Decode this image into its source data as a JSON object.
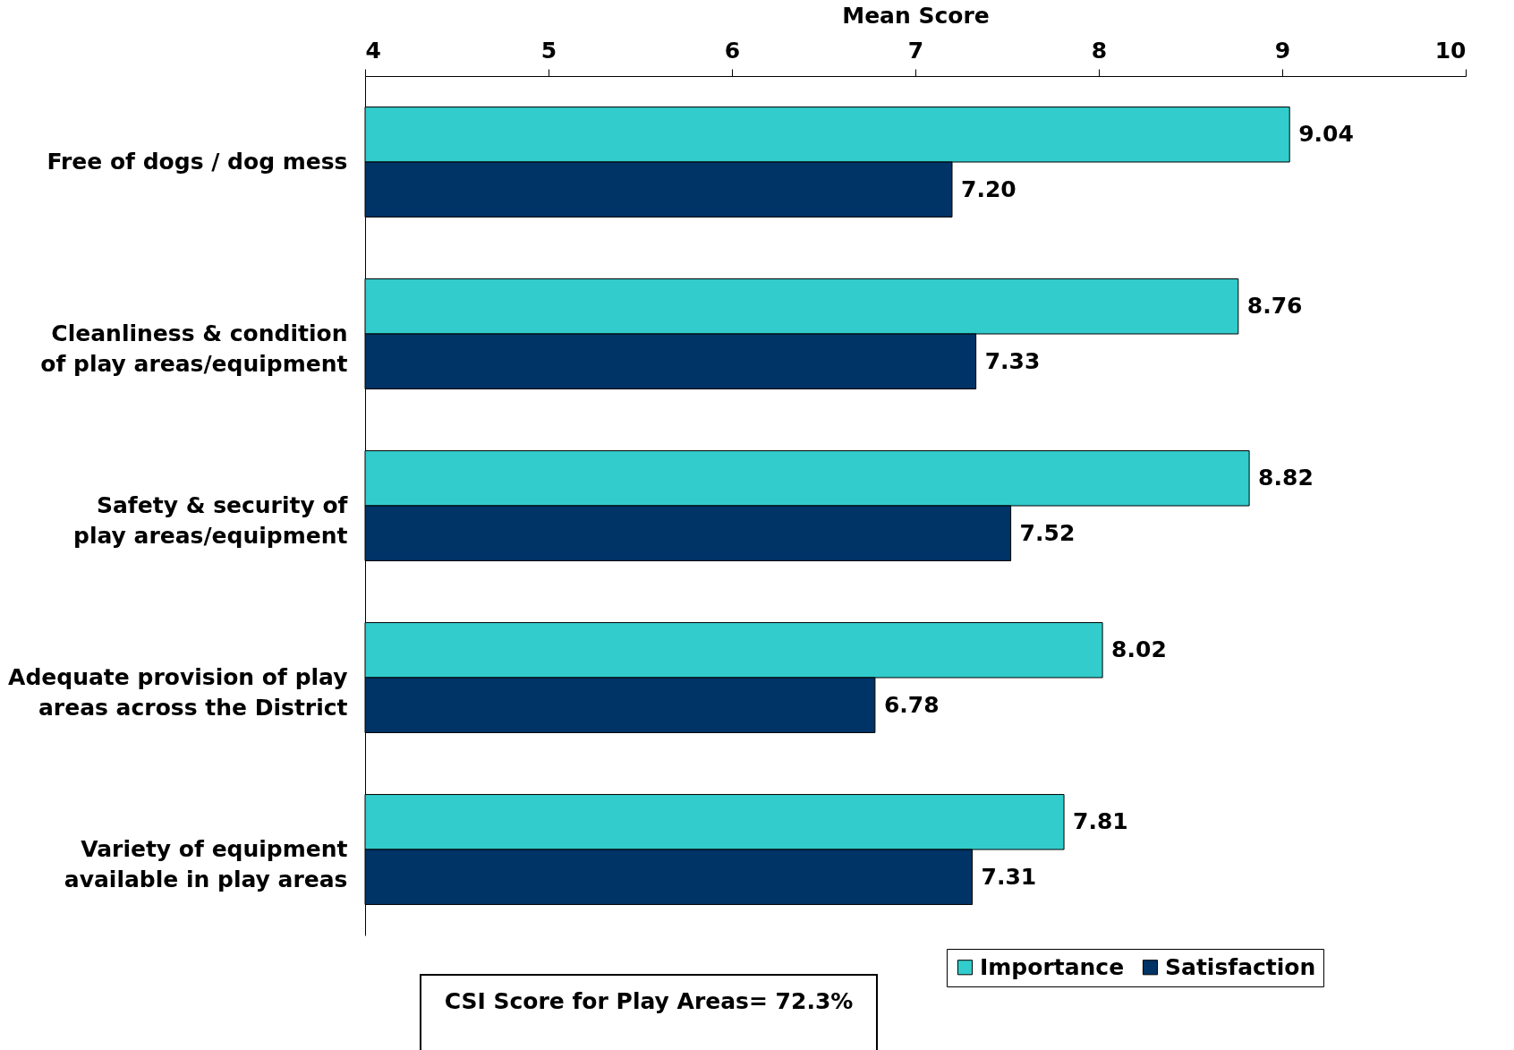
{
  "chart_data": {
    "type": "bar",
    "orientation": "horizontal",
    "xlabel": "Mean Score",
    "categories": [
      "Free of dogs / dog mess",
      "Cleanliness & condition of play areas/equipment",
      "Safety & security of play areas/equipment",
      "Adequate provision of play areas across the District",
      "Variety of equipment available in play areas"
    ],
    "series": [
      {
        "name": "Importance",
        "color": "#33cccc",
        "values": [
          9.04,
          8.76,
          8.82,
          8.02,
          7.81
        ],
        "value_labels": [
          "9.04",
          "8.76",
          "8.82",
          "8.02",
          "7.81"
        ]
      },
      {
        "name": "Satisfaction",
        "color": "#003366",
        "values": [
          7.2,
          7.33,
          7.52,
          6.78,
          7.31
        ],
        "value_labels": [
          "7.20",
          "7.33",
          "7.52",
          "6.78",
          "7.31"
        ]
      }
    ],
    "xlim": [
      4,
      10
    ],
    "xticks": [
      4,
      5,
      6,
      7,
      8,
      9,
      10
    ],
    "grid": false,
    "legend": "bottom right",
    "annotations": [
      "CSI Score for Play Areas= 72.3%"
    ]
  }
}
